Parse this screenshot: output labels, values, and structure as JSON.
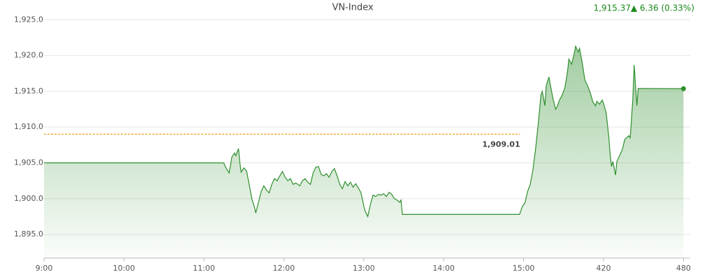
{
  "chart_data": {
    "type": "area",
    "title": "VN-Index",
    "last_value": "1,915.37",
    "change": "▲ 6.36 (0.33%)",
    "color": "#2f8f2f",
    "grid": true,
    "xlim": [
      0,
      485
    ],
    "xticks": [
      {
        "value": 0,
        "label": "9:00"
      },
      {
        "value": 60,
        "label": "10:00"
      },
      {
        "value": 120,
        "label": "11:00"
      },
      {
        "value": 180,
        "label": "12:00"
      },
      {
        "value": 240,
        "label": "13:00"
      },
      {
        "value": 300,
        "label": "14:00"
      },
      {
        "value": 360,
        "label": "15:00"
      },
      420,
      480
    ],
    "ylim": [
      1891.7,
      1926.3
    ],
    "yticks": [
      {
        "value": 1895,
        "label": "1,895.0"
      },
      {
        "value": 1900,
        "label": "1,900.0"
      },
      {
        "value": 1905,
        "label": "1,905.0"
      },
      {
        "value": 1910,
        "label": "1,910.0"
      },
      {
        "value": 1915,
        "label": "1,915.0"
      },
      {
        "value": 1920,
        "label": "1,920.0"
      },
      {
        "value": 1925,
        "label": "1,925.0"
      }
    ],
    "reference": {
      "value": 1909.01,
      "label": "1,909.01",
      "color": "#f0a020"
    },
    "series": [
      {
        "name": "VN-Index",
        "x": [
          0,
          135,
          136,
          139,
          141,
          143,
          144,
          146,
          147,
          148,
          150,
          152,
          154,
          156,
          158,
          159,
          161,
          163,
          165,
          167,
          169,
          171,
          173,
          175,
          177,
          179,
          181,
          183,
          185,
          187,
          189,
          192,
          194,
          196,
          198,
          200,
          202,
          204,
          206,
          208,
          210,
          212,
          214,
          216,
          218,
          220,
          222,
          224,
          226,
          228,
          230,
          232,
          234,
          236,
          238,
          240,
          241,
          243,
          245,
          247,
          249,
          251,
          253,
          255,
          257,
          259,
          261,
          263,
          265,
          267,
          268,
          269,
          357,
          359,
          361,
          363,
          365,
          367,
          369,
          371,
          373,
          374,
          376,
          377,
          379,
          380,
          382,
          384,
          385,
          387,
          389,
          391,
          393,
          394,
          396,
          398,
          399,
          401,
          402,
          404,
          406,
          408,
          410,
          412,
          414,
          415,
          417,
          419,
          420,
          422,
          424,
          425,
          426,
          427,
          429,
          430,
          432,
          434,
          436,
          439,
          440,
          442,
          443,
          445,
          446,
          480
        ],
        "values": [
          1905.0,
          1905.0,
          1904.5,
          1903.6,
          1905.8,
          1906.4,
          1906.0,
          1907.0,
          1905.0,
          1903.7,
          1904.3,
          1903.9,
          1902.0,
          1900.0,
          1898.8,
          1898.0,
          1899.5,
          1901.0,
          1901.8,
          1901.2,
          1900.8,
          1902.0,
          1902.8,
          1902.5,
          1903.2,
          1903.8,
          1903.0,
          1902.5,
          1902.8,
          1902.0,
          1902.2,
          1901.8,
          1902.5,
          1902.8,
          1902.3,
          1902.0,
          1903.6,
          1904.4,
          1904.5,
          1903.4,
          1903.2,
          1903.5,
          1903.0,
          1903.8,
          1904.2,
          1903.2,
          1902.0,
          1901.4,
          1902.4,
          1901.8,
          1902.3,
          1901.6,
          1902.1,
          1901.5,
          1900.8,
          1899.0,
          1898.3,
          1897.5,
          1899.2,
          1900.5,
          1900.3,
          1900.6,
          1900.5,
          1900.7,
          1900.3,
          1900.9,
          1900.6,
          1900.0,
          1899.8,
          1899.5,
          1899.8,
          1897.8,
          1897.8,
          1898.9,
          1899.4,
          1901.0,
          1902.0,
          1904.0,
          1907.0,
          1910.5,
          1914.5,
          1915.0,
          1913.0,
          1915.8,
          1917.0,
          1916.0,
          1914.0,
          1912.5,
          1912.8,
          1913.8,
          1914.5,
          1915.5,
          1917.8,
          1919.5,
          1918.8,
          1920.3,
          1921.3,
          1920.5,
          1921.0,
          1919.0,
          1916.6,
          1915.8,
          1914.8,
          1913.5,
          1913.0,
          1913.6,
          1913.2,
          1913.8,
          1913.3,
          1912.0,
          1908.5,
          1906.0,
          1904.5,
          1905.2,
          1903.3,
          1905.2,
          1906.0,
          1906.8,
          1908.3,
          1908.8,
          1908.5,
          1914.0,
          1918.7,
          1913.0,
          1915.4,
          1915.37
        ]
      }
    ]
  }
}
